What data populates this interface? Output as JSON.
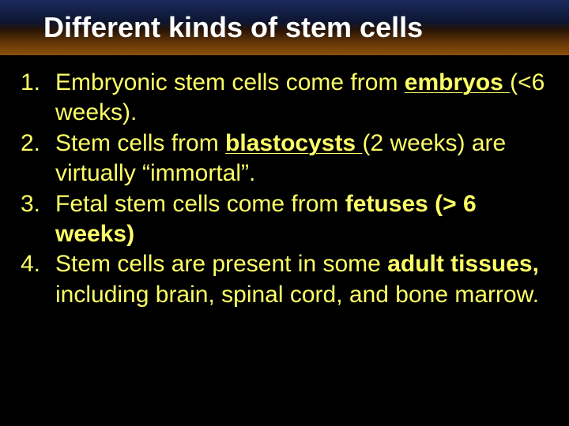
{
  "title": "Different kinds of stem cells",
  "background_color": "#000000",
  "text_color": "#ffff66",
  "title_text_color": "#ffffff",
  "title_fontsize": 36,
  "body_fontsize": 30,
  "title_gradient": [
    "#1a2a5e",
    "#0d1530",
    "#2a1505",
    "#6b3a08",
    "#8b5008"
  ],
  "items": [
    {
      "num": "1.",
      "parts": [
        {
          "text": "Embryonic stem cells come from ",
          "bold": false,
          "underline": false
        },
        {
          "text": "embryos ",
          "bold": true,
          "underline": true
        },
        {
          "text": "(<6 weeks).",
          "bold": false,
          "underline": false
        }
      ]
    },
    {
      "num": "2.",
      "parts": [
        {
          "text": "Stem cells from ",
          "bold": false,
          "underline": false
        },
        {
          "text": "blastocysts ",
          "bold": true,
          "underline": true
        },
        {
          "text": "(2 weeks) are virtually “immortal”.",
          "bold": false,
          "underline": false
        }
      ]
    },
    {
      "num": "3.",
      "parts": [
        {
          "text": "Fetal stem cells come from ",
          "bold": false,
          "underline": false
        },
        {
          "text": "fetuses (> 6 weeks)",
          "bold": true,
          "underline": false
        }
      ]
    },
    {
      "num": "4.",
      "parts": [
        {
          "text": "Stem cells are present in some ",
          "bold": false,
          "underline": false
        },
        {
          "text": "adult tissues, ",
          "bold": true,
          "underline": false
        },
        {
          "text": "including brain, spinal cord, and bone marrow.",
          "bold": false,
          "underline": false
        }
      ]
    }
  ]
}
